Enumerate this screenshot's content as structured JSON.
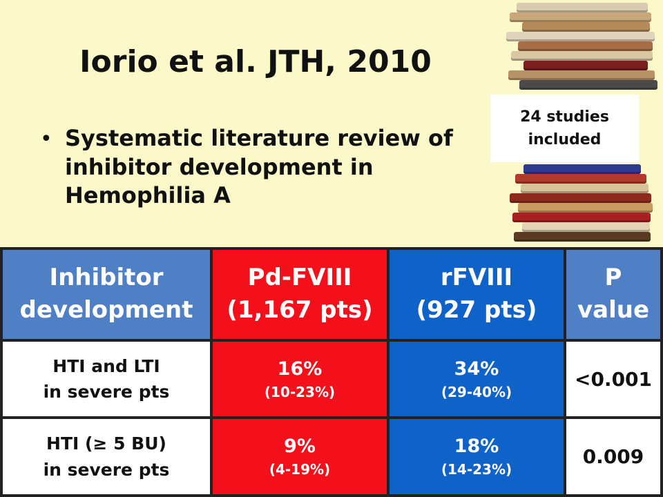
{
  "slide": {
    "title": "Iorio et al. JTH, 2010",
    "bullets": [
      "Systematic literature review of inhibitor development in Hemophilia A"
    ],
    "studies_label_line1": "24 studies",
    "studies_label_line2": "included"
  },
  "table": {
    "headers": [
      {
        "line1": "Inhibitor",
        "line2": "development"
      },
      {
        "line1": "Pd-FVIII",
        "line2": "(1,167 pts)"
      },
      {
        "line1": "rFVIII",
        "line2": "(927 pts)"
      },
      {
        "line1": "P",
        "line2": "value"
      }
    ],
    "rows": [
      {
        "label_line1": "HTI and LTI",
        "label_line2": "in severe pts",
        "pd_value": "16%",
        "pd_range": "(10-23%)",
        "rf_value": "34%",
        "rf_range": "(29-40%)",
        "p_value": "<0.001"
      },
      {
        "label_line1": "HTI (≥ 5 BU)",
        "label_line2": "in severe pts",
        "pd_value": "9%",
        "pd_range": "(4-19%)",
        "rf_value": "18%",
        "rf_range": "(14-23%)",
        "p_value": "0.009"
      }
    ]
  },
  "colors": {
    "background": "#fbf8c9",
    "header_blue": "#4f7fc4",
    "pd_red": "#f4101a",
    "rf_blue": "#0f63c8"
  },
  "icons": [
    "book-stack-top-image",
    "book-stack-bottom-image"
  ]
}
